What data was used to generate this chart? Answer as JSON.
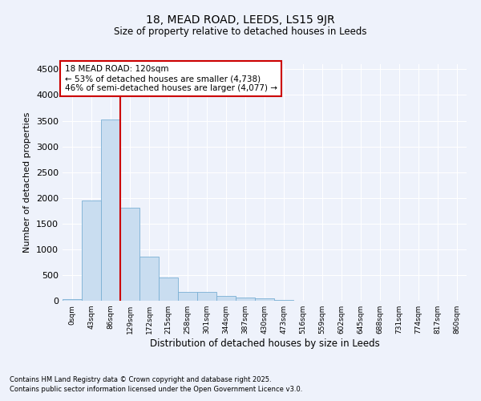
{
  "title1": "18, MEAD ROAD, LEEDS, LS15 9JR",
  "title2": "Size of property relative to detached houses in Leeds",
  "xlabel": "Distribution of detached houses by size in Leeds",
  "ylabel": "Number of detached properties",
  "bar_color": "#c9ddf0",
  "bar_edge_color": "#7aafd4",
  "vline_color": "#cc0000",
  "vline_x_idx": 2.5,
  "annotation_title": "18 MEAD ROAD: 120sqm",
  "annotation_line2": "← 53% of detached houses are smaller (4,738)",
  "annotation_line3": "46% of semi-detached houses are larger (4,077) →",
  "annotation_box_color": "#ffffff",
  "annotation_box_edge": "#cc0000",
  "categories": [
    "0sqm",
    "43sqm",
    "86sqm",
    "129sqm",
    "172sqm",
    "215sqm",
    "258sqm",
    "301sqm",
    "344sqm",
    "387sqm",
    "430sqm",
    "473sqm",
    "516sqm",
    "559sqm",
    "602sqm",
    "645sqm",
    "688sqm",
    "731sqm",
    "774sqm",
    "817sqm",
    "860sqm"
  ],
  "values": [
    30,
    1950,
    3520,
    1810,
    860,
    450,
    175,
    165,
    90,
    60,
    40,
    20,
    0,
    0,
    0,
    0,
    0,
    0,
    0,
    0,
    0
  ],
  "ylim": [
    0,
    4600
  ],
  "yticks": [
    0,
    500,
    1000,
    1500,
    2000,
    2500,
    3000,
    3500,
    4000,
    4500
  ],
  "background_color": "#eef2fb",
  "grid_color": "#ffffff",
  "footnote1": "Contains HM Land Registry data © Crown copyright and database right 2025.",
  "footnote2": "Contains public sector information licensed under the Open Government Licence v3.0."
}
